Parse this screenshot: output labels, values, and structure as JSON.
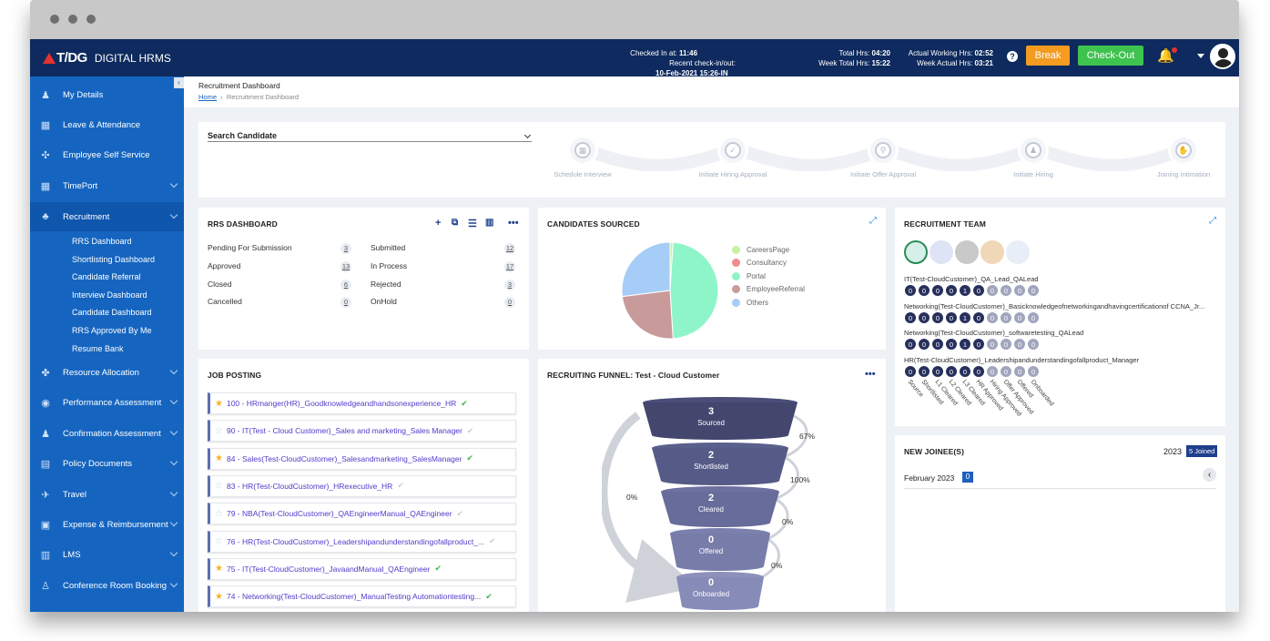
{
  "header": {
    "brand": "T/DG",
    "app_name": "DIGITAL HRMS",
    "checked_in_label": "Checked In at:",
    "checked_in_value": "11:46",
    "recent_label": "Recent check-in/out:",
    "recent_value": "10-Feb-2021 15:26-IN",
    "total_hrs_label": "Total Hrs:",
    "total_hrs_value": "04:20",
    "week_total_label": "Week Total Hrs:",
    "week_total_value": "15:22",
    "actual_label": "Actual Working Hrs:",
    "actual_value": "02:52",
    "week_actual_label": "Week Actual Hrs:",
    "week_actual_value": "03:21",
    "help": "?",
    "break_label": "Break",
    "checkout_label": "Check-Out"
  },
  "sidebar": {
    "collapse": "‹",
    "items": [
      {
        "label": "My Details",
        "icon": "person-icon",
        "glyph": "♟"
      },
      {
        "label": "Leave & Attendance",
        "icon": "calendar-icon",
        "glyph": "▦"
      },
      {
        "label": "Employee Self Service",
        "icon": "network-icon",
        "glyph": "✣"
      },
      {
        "label": "TimePort",
        "icon": "calendar-clock-icon",
        "glyph": "▦"
      },
      {
        "label": "Recruitment",
        "icon": "team-icon",
        "glyph": "♣"
      },
      {
        "label": "Resource Allocation",
        "icon": "org-icon",
        "glyph": "✤"
      },
      {
        "label": "Performance Assessment",
        "icon": "magnify-icon",
        "glyph": "◉"
      },
      {
        "label": "Confirmation Assessment",
        "icon": "user-check-icon",
        "glyph": "♟"
      },
      {
        "label": "Policy Documents",
        "icon": "document-icon",
        "glyph": "▤"
      },
      {
        "label": "Travel",
        "icon": "plane-icon",
        "glyph": "✈"
      },
      {
        "label": "Expense & Reimbursement",
        "icon": "wallet-icon",
        "glyph": "▣"
      },
      {
        "label": "LMS",
        "icon": "book-icon",
        "glyph": "▥"
      },
      {
        "label": "Conference Room Booking",
        "icon": "meeting-icon",
        "glyph": "♙"
      }
    ],
    "recruitment_sub": [
      "RRS Dashboard",
      "Shortlisting Dashboard",
      "Candidate Referral",
      "Interview Dashboard",
      "Candidate Dashboard",
      "RRS Approved By Me",
      "Resume Bank"
    ]
  },
  "breadcrumb": {
    "title": "Recruitment Dashboard",
    "home": "Home",
    "current": "Recruitment Dashboard"
  },
  "search": {
    "label": "Search Candidate"
  },
  "steps": [
    "Schedule Interview",
    "Initiate Hiring Approval",
    "Initiate Offer Approval",
    "Initiate Hiring",
    "Joining Intimation"
  ],
  "rrs": {
    "title": "RRS DASHBOARD",
    "left": [
      {
        "label": "Pending For Submission",
        "count": "3"
      },
      {
        "label": "Approved",
        "count": "13"
      },
      {
        "label": "Closed",
        "count": "6"
      },
      {
        "label": "Cancelled",
        "count": "0"
      }
    ],
    "right": [
      {
        "label": "Submitted",
        "count": "12"
      },
      {
        "label": "In Process",
        "count": "17"
      },
      {
        "label": "Rejected",
        "count": "3"
      },
      {
        "label": "OnHold",
        "count": "0"
      }
    ]
  },
  "candidates": {
    "title": "CANDIDATES SOURCED"
  },
  "chart_data": {
    "type": "pie",
    "labels": [
      "CareersPage",
      "Consultancy",
      "Portal",
      "EmployeeReferral",
      "Others"
    ],
    "values": [
      1,
      0,
      48,
      24,
      27
    ],
    "colors": [
      "#c6f2a6",
      "#f28b8b",
      "#8ef5c9",
      "#c99a9a",
      "#a6cdf7"
    ]
  },
  "team": {
    "title": "RECRUITMENT TEAM",
    "rows": [
      {
        "name": "IT(Test-CloudCustomer)_QA_Lead_QALead",
        "counts": [
          "0",
          "0",
          "0",
          "0",
          "1",
          "0",
          "0",
          "0",
          "0",
          "0"
        ]
      },
      {
        "name": "Networking(Test-CloudCustomer)_Basicknowledgeofnetworkingandhavingcertificationof CCNA_Jr...",
        "counts": [
          "0",
          "0",
          "0",
          "0",
          "1",
          "0",
          "0",
          "0",
          "0",
          "0"
        ]
      },
      {
        "name": "Networking(Test-CloudCustomer)_softwaretesting_QALead",
        "counts": [
          "0",
          "0",
          "0",
          "0",
          "1",
          "0",
          "0",
          "0",
          "0",
          "0"
        ]
      },
      {
        "name": "HR(Test-CloudCustomer)_Leadershipandunderstandingofallproduct_Manager",
        "counts": [
          "0",
          "0",
          "0",
          "0",
          "0",
          "0",
          "0",
          "0",
          "0",
          "0"
        ]
      }
    ],
    "stages": [
      "Source",
      "Shortlisted",
      "L1 Cleared",
      "L2 Cleared",
      "L3 Cleared",
      "HR Approved",
      "Hiring Approved",
      "Offer Approved",
      "Offered",
      "Onboarded"
    ]
  },
  "jobs": {
    "title": "JOB POSTING",
    "items": [
      {
        "text": "100 - HRmanger(HR)_Goodknowledgeandhandsonexperience_HR",
        "starred": true,
        "approved": true
      },
      {
        "text": "90 - IT(Test - Cloud Customer)_Sales and marketing_Sales Manager",
        "starred": false,
        "approved": false
      },
      {
        "text": "84 - Sales(Test-CloudCustomer)_Salesandmarketing_SalesManager",
        "starred": true,
        "approved": true
      },
      {
        "text": "83 - HR(Test-CloudCustomer)_HRexecutive_HR",
        "starred": false,
        "approved": false
      },
      {
        "text": "79 - NBA(Test-CloudCustomer)_QAEngineerManual_QAEngineer",
        "starred": false,
        "approved": false
      },
      {
        "text": "76 - HR(Test-CloudCustomer)_Leadershipandunderstandingofallproduct_...",
        "starred": false,
        "approved": false
      },
      {
        "text": "75 - IT(Test-CloudCustomer)_JavaandManual_QAEngineer",
        "starred": true,
        "approved": true
      },
      {
        "text": "74 - Networking(Test-CloudCustomer)_ManualTesting Automationtesting...",
        "starred": true,
        "approved": true
      }
    ]
  },
  "funnel": {
    "title": "RECRUITING FUNNEL: Test - Cloud Customer",
    "stages": [
      {
        "value": "3",
        "label": "Sourced"
      },
      {
        "value": "2",
        "label": "Shortlisted"
      },
      {
        "value": "2",
        "label": "Cleared"
      },
      {
        "value": "0",
        "label": "Offered"
      },
      {
        "value": "0",
        "label": "Onboarded"
      }
    ],
    "conversions": [
      "67%",
      "100%",
      "0%",
      "0%"
    ],
    "overall": "0%"
  },
  "joinee": {
    "title": "NEW JOINEE(S)",
    "year": "2023",
    "joined": "5 Joined",
    "month": "February  2023",
    "count": "0"
  }
}
